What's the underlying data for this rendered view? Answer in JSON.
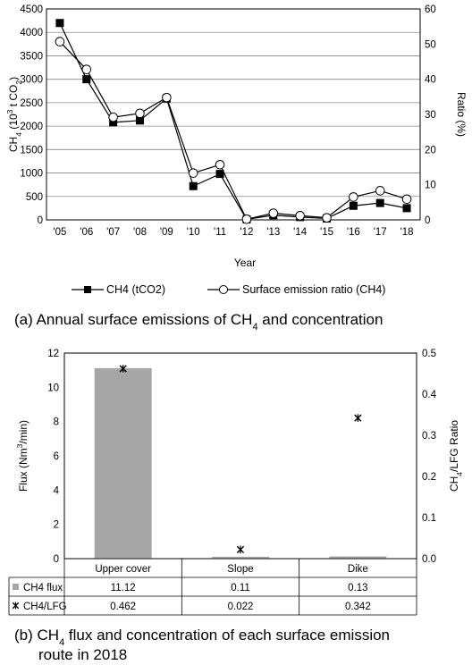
{
  "chart_data": [
    {
      "type": "line",
      "x": [
        "'05",
        "'06",
        "'07",
        "'08",
        "'09",
        "'10",
        "'11",
        "'12",
        "'13",
        "'14",
        "'15",
        "'16",
        "'17",
        "'18"
      ],
      "xlabel": "Year",
      "ylabel": "CH4 (10³ t CO2)",
      "ylabel_parts": {
        "a": "CH",
        "a_sub": "4",
        "b": " (10",
        "b_sup": "3",
        "c": " t CO",
        "c_sub": "2",
        "d": ")"
      },
      "y2label": "Ratio (%)",
      "ylim": [
        0,
        4500
      ],
      "y_ticks": [
        "0",
        "500",
        "1000",
        "1500",
        "2000",
        "2500",
        "3000",
        "3500",
        "4000",
        "4500"
      ],
      "y2lim": [
        0,
        60
      ],
      "y2_ticks": [
        "0",
        "10",
        "20",
        "30",
        "40",
        "50",
        "60"
      ],
      "grid": true,
      "legend_position": "bottom",
      "series": [
        {
          "name": "CH4 (tCO2)",
          "axis": "left",
          "marker": "filled-square",
          "color": "#000000",
          "values": [
            4200,
            3000,
            2080,
            2120,
            2590,
            720,
            980,
            10,
            100,
            60,
            30,
            300,
            360,
            250
          ]
        },
        {
          "name": "Surface emission ratio (CH4)",
          "axis": "right",
          "marker": "open-circle",
          "color": "#000000",
          "values": [
            50.7,
            42.8,
            29.2,
            30.3,
            34.8,
            13.3,
            15.7,
            0.2,
            1.9,
            1.2,
            0.6,
            6.5,
            8.3,
            5.9
          ]
        }
      ]
    },
    {
      "type": "bar",
      "categories": [
        "Upper cover",
        "Slope",
        "Dike"
      ],
      "ylabel": "Flux (Nm³/min)",
      "ylabel_parts": {
        "a": "Flux (Nm",
        "a_sup": "3",
        "b": "/min)"
      },
      "y2label": "CH4/LFG Ratio",
      "y2label_parts": {
        "a": "CH",
        "a_sub": "4",
        "b": "/LFG Ratio"
      },
      "ylim": [
        0,
        12
      ],
      "y_ticks": [
        "0",
        "2",
        "4",
        "6",
        "8",
        "10",
        "12"
      ],
      "y2lim": [
        0,
        0.5
      ],
      "y2_ticks": [
        "0.0",
        "0.1",
        "0.2",
        "0.3",
        "0.4",
        "0.5"
      ],
      "grid": false,
      "series": [
        {
          "name": "CH4 flux",
          "axis": "left",
          "type": "bar",
          "color": "#a6a6a6",
          "values": [
            11.12,
            0.11,
            0.13
          ],
          "labels": [
            "11.12",
            "0.11",
            "0.13"
          ]
        },
        {
          "name": "CH4/LFG",
          "axis": "right",
          "type": "scatter",
          "marker": "star",
          "color": "#000000",
          "values": [
            0.462,
            0.022,
            0.342
          ],
          "labels": [
            "0.462",
            "0.022",
            "0.342"
          ]
        }
      ]
    }
  ],
  "captions": {
    "a": {
      "prefix": "(a) Annual surface emissions of CH",
      "sub": "4",
      "suffix": " and concentration"
    },
    "b": {
      "line1_prefix": "(b) CH",
      "line1_sub": "4",
      "line1_suffix": " flux and concentration of each surface emission",
      "line2": "route in 2018"
    }
  }
}
